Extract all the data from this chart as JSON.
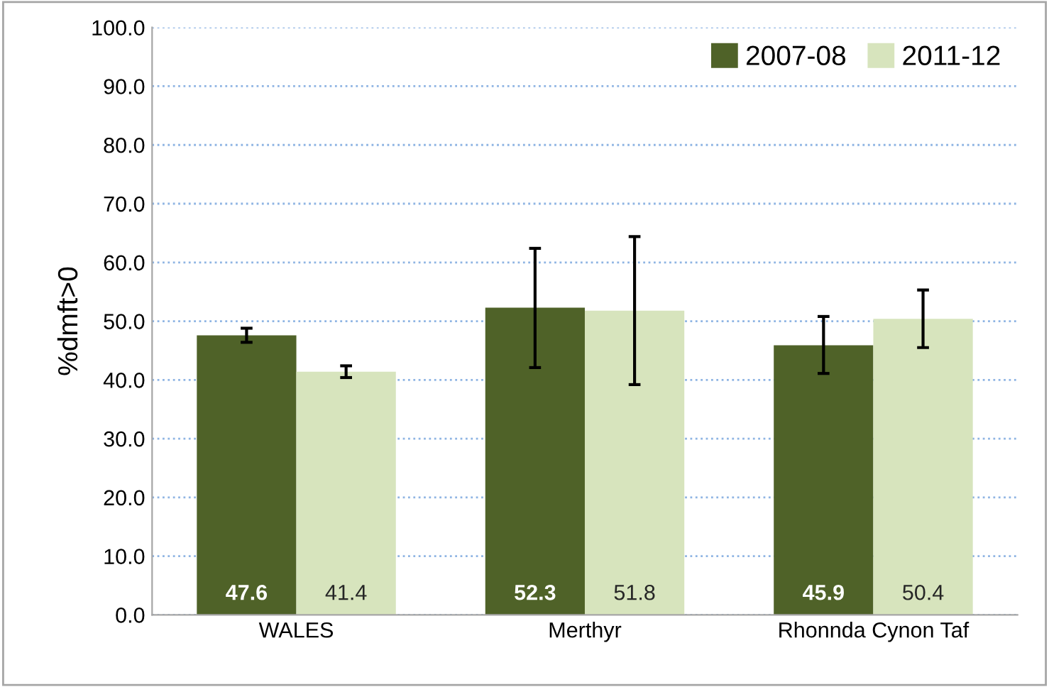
{
  "chart_data": {
    "type": "bar",
    "ylabel": "%dmft>0",
    "categories": [
      "WALES",
      "Merthyr",
      "Rhonnda Cynon Taf"
    ],
    "series": [
      {
        "name": "2007-08",
        "color": "#4f6228",
        "values": [
          47.6,
          52.3,
          45.9
        ],
        "errors": [
          [
            46.4,
            48.8
          ],
          [
            42.1,
            62.4
          ],
          [
            41.1,
            50.8
          ]
        ]
      },
      {
        "name": "2011-12",
        "color": "#d7e4bd",
        "values": [
          41.4,
          51.8,
          50.4
        ],
        "errors": [
          [
            40.4,
            42.4
          ],
          [
            39.2,
            64.4
          ],
          [
            45.5,
            55.3
          ]
        ]
      }
    ],
    "ylim": [
      0,
      100
    ],
    "yticks": [
      {
        "value": 0,
        "label": "0.0"
      },
      {
        "value": 10,
        "label": "10.0"
      },
      {
        "value": 20,
        "label": "20.0"
      },
      {
        "value": 30,
        "label": "30.0"
      },
      {
        "value": 40,
        "label": "40.0"
      },
      {
        "value": 50,
        "label": "50.0"
      },
      {
        "value": 60,
        "label": "60.0"
      },
      {
        "value": 70,
        "label": "70.0"
      },
      {
        "value": 80,
        "label": "80.0"
      },
      {
        "value": 90,
        "label": "90.0"
      },
      {
        "value": 100,
        "label": "100.0"
      }
    ],
    "grid": "y",
    "legend": "top right",
    "data_labels": true
  }
}
